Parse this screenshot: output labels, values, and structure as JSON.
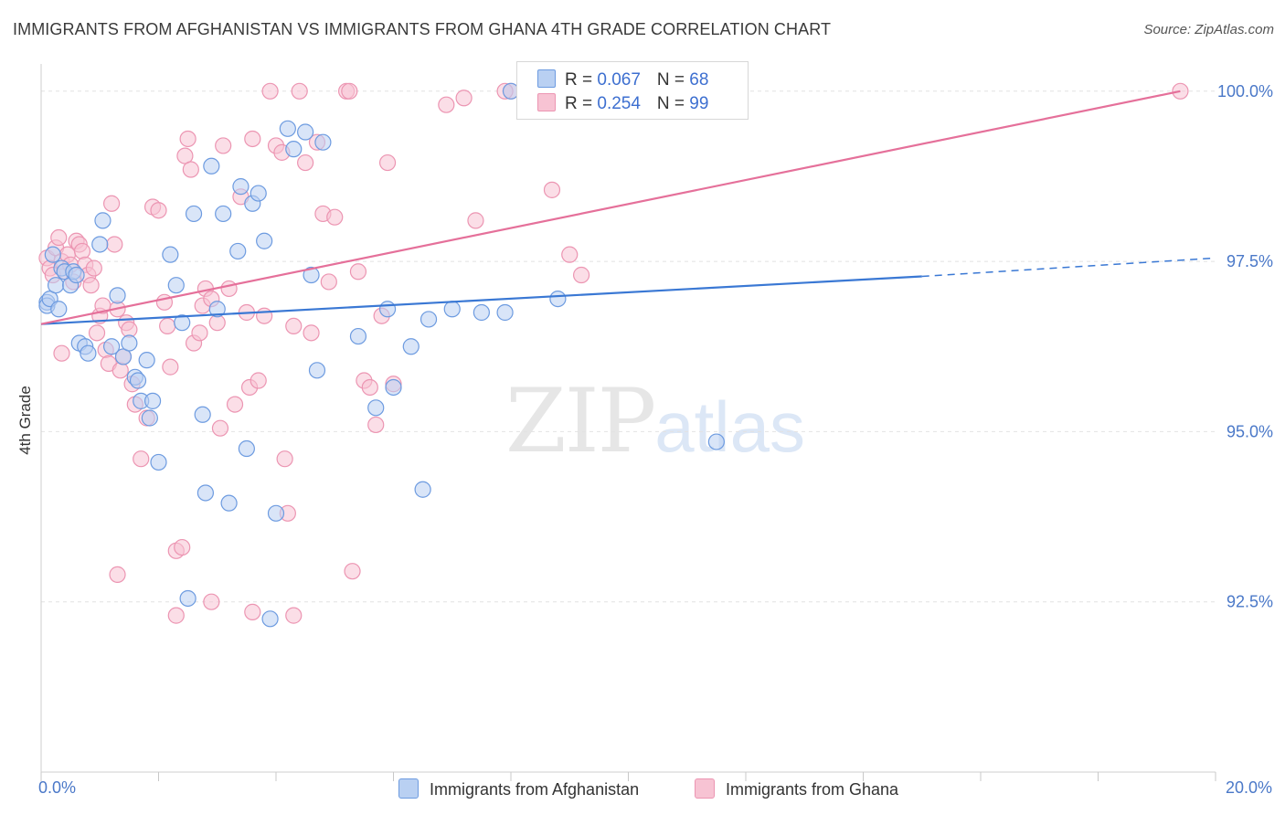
{
  "header": {
    "title": "IMMIGRANTS FROM AFGHANISTAN VS IMMIGRANTS FROM GHANA 4TH GRADE CORRELATION CHART",
    "source": "Source: ZipAtlas.com"
  },
  "watermark": {
    "zip": "ZIP",
    "atlas": "atlas"
  },
  "legend": {
    "afghanistan": {
      "r_label": "R = ",
      "r_value": "0.067",
      "n_label": "N = ",
      "n_value": "68"
    },
    "ghana": {
      "r_label": "R = ",
      "r_value": "0.254",
      "n_label": "N = ",
      "n_value": "99"
    }
  },
  "colors": {
    "afghanistan_fill": "#b9d0f2",
    "afghanistan_stroke": "#6d9be0",
    "afghanistan_line": "#3a78d4",
    "ghana_fill": "#f7c3d3",
    "ghana_stroke": "#ec95b2",
    "ghana_line": "#e5709a",
    "grid": "#e2e2e2",
    "tick_text": "#4a78c8"
  },
  "chart_data": {
    "type": "scatter",
    "title": "IMMIGRANTS FROM AFGHANISTAN VS IMMIGRANTS FROM GHANA 4TH GRADE CORRELATION CHART",
    "xlabel": "",
    "ylabel": "4th Grade",
    "xlim": [
      0,
      20
    ],
    "ylim": [
      90.0,
      100.4
    ],
    "x_tick_labels": [
      "0.0%",
      "20.0%"
    ],
    "y_ticks": [
      {
        "value": 92.5,
        "label": "92.5%"
      },
      {
        "value": 95.0,
        "label": "95.0%"
      },
      {
        "value": 97.5,
        "label": "97.5%"
      },
      {
        "value": 100.0,
        "label": "100.0%"
      }
    ],
    "grid": true,
    "legend_position": "top-center",
    "series": [
      {
        "name": "Immigrants from Afghanistan",
        "color": "#6d9be0",
        "trend": {
          "x": [
            0.0,
            15.0
          ],
          "y": [
            96.58,
            97.28
          ],
          "dashed_to": [
            20.0,
            97.55
          ]
        },
        "points": [
          [
            0.1,
            96.9
          ],
          [
            0.1,
            96.85
          ],
          [
            0.15,
            96.95
          ],
          [
            0.2,
            97.6
          ],
          [
            0.25,
            97.15
          ],
          [
            0.3,
            96.8
          ],
          [
            0.35,
            97.4
          ],
          [
            0.4,
            97.35
          ],
          [
            0.5,
            97.15
          ],
          [
            0.55,
            97.35
          ],
          [
            0.6,
            97.3
          ],
          [
            0.65,
            96.3
          ],
          [
            0.75,
            96.25
          ],
          [
            0.8,
            96.15
          ],
          [
            1.0,
            97.75
          ],
          [
            1.05,
            98.1
          ],
          [
            1.2,
            96.25
          ],
          [
            1.3,
            97.0
          ],
          [
            1.4,
            96.1
          ],
          [
            1.5,
            96.3
          ],
          [
            1.6,
            95.8
          ],
          [
            1.65,
            95.75
          ],
          [
            1.7,
            95.45
          ],
          [
            1.8,
            96.05
          ],
          [
            1.85,
            95.2
          ],
          [
            1.9,
            95.45
          ],
          [
            2.0,
            94.55
          ],
          [
            2.2,
            97.6
          ],
          [
            2.3,
            97.15
          ],
          [
            2.4,
            96.6
          ],
          [
            2.6,
            98.2
          ],
          [
            2.75,
            95.25
          ],
          [
            2.8,
            94.1
          ],
          [
            2.9,
            98.9
          ],
          [
            3.0,
            96.8
          ],
          [
            3.1,
            98.2
          ],
          [
            3.2,
            93.95
          ],
          [
            3.35,
            97.65
          ],
          [
            3.4,
            98.6
          ],
          [
            3.5,
            94.75
          ],
          [
            3.6,
            98.35
          ],
          [
            3.7,
            98.5
          ],
          [
            3.8,
            97.8
          ],
          [
            4.0,
            93.8
          ],
          [
            4.2,
            99.45
          ],
          [
            4.3,
            99.15
          ],
          [
            4.5,
            99.4
          ],
          [
            4.6,
            97.3
          ],
          [
            4.7,
            95.9
          ],
          [
            4.8,
            99.25
          ],
          [
            2.5,
            92.55
          ],
          [
            3.9,
            92.25
          ],
          [
            5.4,
            96.4
          ],
          [
            5.7,
            95.35
          ],
          [
            5.9,
            96.8
          ],
          [
            6.0,
            95.65
          ],
          [
            6.3,
            96.25
          ],
          [
            6.5,
            94.15
          ],
          [
            6.6,
            96.65
          ],
          [
            7.0,
            96.8
          ],
          [
            7.5,
            96.75
          ],
          [
            7.9,
            96.75
          ],
          [
            8.0,
            100.0
          ],
          [
            8.4,
            100.0
          ],
          [
            8.8,
            96.95
          ],
          [
            10.9,
            100.0
          ],
          [
            11.0,
            100.0
          ],
          [
            11.5,
            94.85
          ]
        ]
      },
      {
        "name": "Immigrants from Ghana",
        "color": "#ec95b2",
        "trend": {
          "x": [
            0.0,
            19.4
          ],
          "y": [
            96.58,
            100.0
          ]
        },
        "points": [
          [
            0.1,
            97.55
          ],
          [
            0.15,
            97.4
          ],
          [
            0.2,
            97.3
          ],
          [
            0.25,
            97.7
          ],
          [
            0.3,
            97.85
          ],
          [
            0.35,
            97.5
          ],
          [
            0.4,
            97.35
          ],
          [
            0.45,
            97.6
          ],
          [
            0.5,
            97.45
          ],
          [
            0.55,
            97.2
          ],
          [
            0.6,
            97.8
          ],
          [
            0.65,
            97.75
          ],
          [
            0.7,
            97.65
          ],
          [
            0.75,
            97.45
          ],
          [
            0.8,
            97.3
          ],
          [
            0.85,
            97.15
          ],
          [
            0.9,
            97.4
          ],
          [
            0.95,
            96.45
          ],
          [
            1.0,
            96.7
          ],
          [
            1.05,
            96.85
          ],
          [
            1.1,
            96.2
          ],
          [
            1.15,
            96.0
          ],
          [
            1.2,
            98.35
          ],
          [
            1.25,
            97.75
          ],
          [
            1.3,
            96.8
          ],
          [
            1.35,
            95.9
          ],
          [
            1.4,
            96.1
          ],
          [
            1.45,
            96.6
          ],
          [
            1.5,
            96.5
          ],
          [
            1.55,
            95.7
          ],
          [
            1.6,
            95.4
          ],
          [
            1.7,
            94.6
          ],
          [
            1.8,
            95.2
          ],
          [
            1.9,
            98.3
          ],
          [
            2.0,
            98.25
          ],
          [
            2.1,
            96.9
          ],
          [
            2.15,
            96.55
          ],
          [
            2.2,
            95.95
          ],
          [
            2.3,
            93.25
          ],
          [
            2.4,
            93.3
          ],
          [
            2.45,
            99.05
          ],
          [
            2.5,
            99.3
          ],
          [
            2.55,
            98.85
          ],
          [
            2.6,
            96.3
          ],
          [
            2.7,
            96.45
          ],
          [
            2.75,
            96.85
          ],
          [
            2.8,
            97.1
          ],
          [
            2.9,
            96.95
          ],
          [
            3.0,
            96.6
          ],
          [
            3.05,
            95.05
          ],
          [
            3.1,
            99.2
          ],
          [
            3.2,
            97.1
          ],
          [
            3.3,
            95.4
          ],
          [
            3.4,
            98.45
          ],
          [
            3.5,
            96.75
          ],
          [
            3.55,
            95.65
          ],
          [
            3.6,
            99.3
          ],
          [
            3.7,
            95.75
          ],
          [
            3.8,
            96.7
          ],
          [
            3.9,
            100.0
          ],
          [
            4.0,
            99.2
          ],
          [
            4.1,
            99.1
          ],
          [
            4.15,
            94.6
          ],
          [
            4.2,
            93.8
          ],
          [
            4.3,
            96.55
          ],
          [
            4.4,
            100.0
          ],
          [
            4.5,
            98.95
          ],
          [
            4.6,
            96.45
          ],
          [
            4.7,
            99.25
          ],
          [
            4.8,
            98.2
          ],
          [
            4.9,
            97.2
          ],
          [
            5.0,
            98.15
          ],
          [
            5.2,
            100.0
          ],
          [
            5.25,
            100.0
          ],
          [
            5.3,
            92.95
          ],
          [
            5.4,
            97.35
          ],
          [
            5.5,
            95.75
          ],
          [
            5.6,
            95.65
          ],
          [
            5.7,
            95.1
          ],
          [
            5.8,
            96.7
          ],
          [
            5.9,
            98.95
          ],
          [
            6.0,
            95.7
          ],
          [
            1.3,
            92.9
          ],
          [
            2.3,
            92.3
          ],
          [
            3.6,
            92.35
          ],
          [
            4.3,
            92.3
          ],
          [
            0.35,
            96.15
          ],
          [
            2.9,
            92.5
          ],
          [
            6.9,
            99.8
          ],
          [
            7.4,
            98.1
          ],
          [
            8.0,
            100.0
          ],
          [
            7.9,
            100.0
          ],
          [
            9.6,
            99.9
          ],
          [
            9.2,
            100.0
          ],
          [
            7.2,
            99.9
          ],
          [
            8.7,
            98.55
          ],
          [
            9.0,
            97.6
          ],
          [
            9.2,
            97.3
          ],
          [
            19.4,
            100.0
          ]
        ]
      }
    ]
  },
  "bottom_legend": {
    "afghanistan": "Immigrants from Afghanistan",
    "ghana": "Immigrants from Ghana"
  }
}
